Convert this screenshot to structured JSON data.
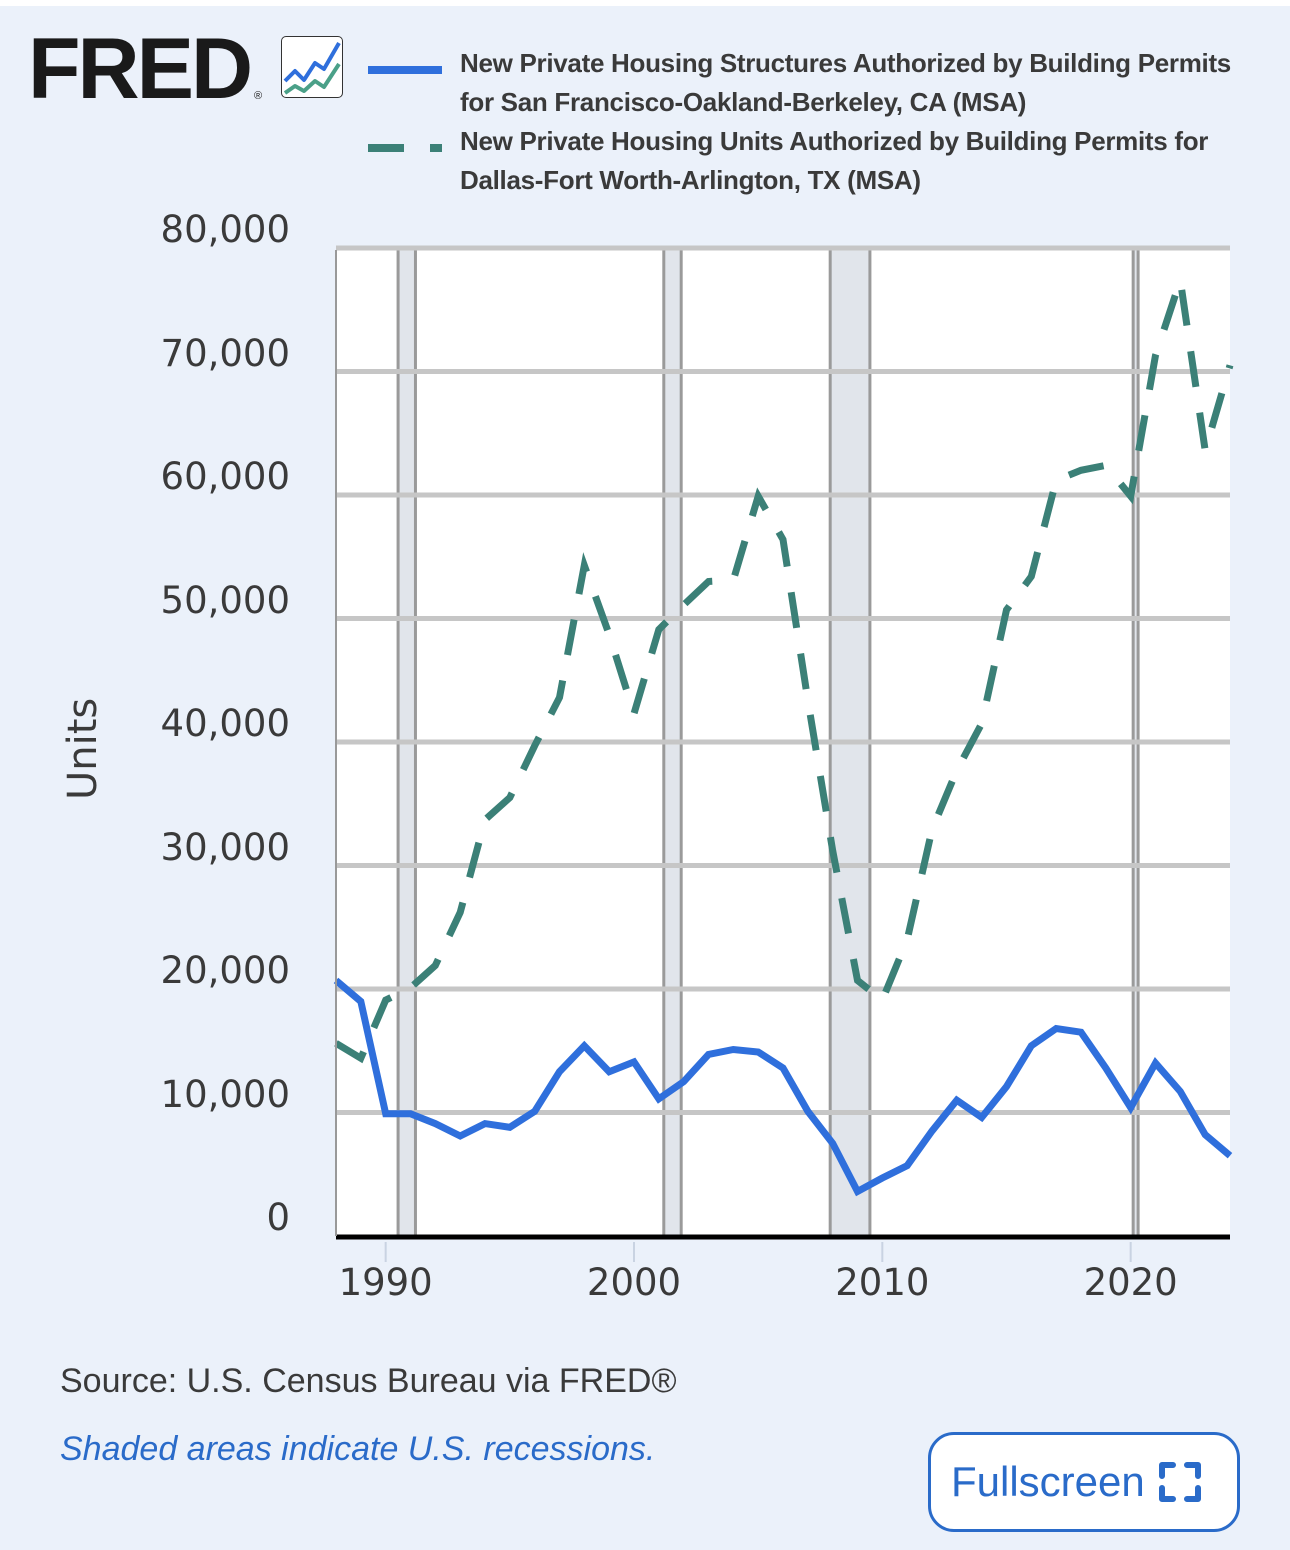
{
  "brand": {
    "name": "FRED",
    "registered_mark": "®",
    "icon": "fred-chart-logo-icon"
  },
  "colors": {
    "background": "#ebf1fa",
    "series_sf": "#2f6fdc",
    "series_dallas": "#3b8077",
    "recession": "#e1e5eb",
    "grid": "#c6c6c6",
    "accent": "#2a6bc9"
  },
  "footer": {
    "source": "Source: U.S. Census Bureau via FRED®",
    "shaded_note": "Shaded areas indicate U.S. recessions.",
    "fullscreen_label": "Fullscreen",
    "fullscreen_icon": "fullscreen-corners-icon"
  },
  "chart_data": {
    "type": "line",
    "title": "",
    "xlabel": "",
    "ylabel": "Units",
    "xlim": [
      1988,
      2024
    ],
    "ylim": [
      0,
      80000
    ],
    "grid": true,
    "legend_position": "top",
    "y_ticks": [
      {
        "value": 0,
        "label": "0"
      },
      {
        "value": 10000,
        "label": "10,000"
      },
      {
        "value": 20000,
        "label": "20,000"
      },
      {
        "value": 30000,
        "label": "30,000"
      },
      {
        "value": 40000,
        "label": "40,000"
      },
      {
        "value": 50000,
        "label": "50,000"
      },
      {
        "value": 60000,
        "label": "60,000"
      },
      {
        "value": 70000,
        "label": "70,000"
      },
      {
        "value": 80000,
        "label": "80,000"
      }
    ],
    "x_ticks": [
      {
        "value": 1990,
        "label": "1990"
      },
      {
        "value": 2000,
        "label": "2000"
      },
      {
        "value": 2010,
        "label": "2010"
      },
      {
        "value": 2020,
        "label": "2020"
      }
    ],
    "recessions": [
      [
        1990.5,
        1991.2
      ],
      [
        2001.2,
        2001.9
      ],
      [
        2007.9,
        2009.5
      ],
      [
        2020.1,
        2020.3
      ]
    ],
    "x": [
      1988,
      1989,
      1990,
      1991,
      1992,
      1993,
      1994,
      1995,
      1996,
      1997,
      1998,
      1999,
      2000,
      2001,
      2002,
      2003,
      2004,
      2005,
      2006,
      2007,
      2008,
      2009,
      2010,
      2011,
      2012,
      2013,
      2014,
      2015,
      2016,
      2017,
      2018,
      2019,
      2020,
      2021,
      2022,
      2023,
      2024
    ],
    "series": [
      {
        "name": "New Private Housing Structures Authorized by Building Permits for San Francisco-Oakland-Berkeley, CA (MSA)",
        "style": "solid",
        "color": "#2f6fdc",
        "values": [
          20700,
          19000,
          9900,
          9900,
          9100,
          8100,
          9100,
          8800,
          10100,
          13300,
          15400,
          13300,
          14100,
          11100,
          12500,
          14700,
          15100,
          14900,
          13600,
          10100,
          7500,
          3600,
          4700,
          5700,
          8500,
          11000,
          9600,
          12100,
          15400,
          16800,
          16500,
          13600,
          10400,
          14000,
          11700,
          8200,
          6500
        ]
      },
      {
        "name": "New Private Housing Units Authorized by Building Permits for Dallas-Fort Worth-Arlington, TX (MSA)",
        "style": "dashed",
        "color": "#3b8077",
        "values": [
          15600,
          14400,
          19100,
          20100,
          21900,
          26200,
          33700,
          35500,
          39700,
          43600,
          54300,
          48700,
          42300,
          49100,
          51100,
          53000,
          53100,
          59900,
          56400,
          43400,
          31200,
          20700,
          19100,
          24000,
          32900,
          37700,
          41500,
          50700,
          53400,
          61200,
          62000,
          62400,
          59900,
          71300,
          77400,
          63600,
          70500
        ]
      }
    ]
  }
}
